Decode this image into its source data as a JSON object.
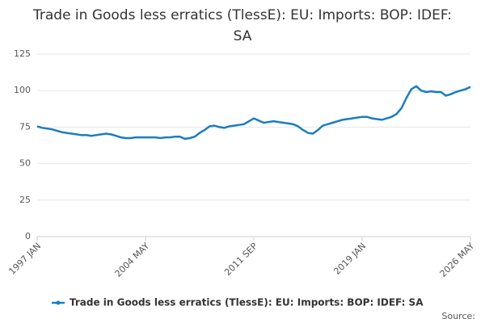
{
  "chart_data": {
    "type": "line",
    "title": "Trade in Goods less erratics (TlessE): EU: Imports: BOP: IDEF: SA",
    "source": "Source:",
    "categories": [
      "1997 JAN",
      null,
      null,
      null,
      null,
      null,
      null,
      null,
      null,
      null,
      null,
      null,
      null,
      null,
      null,
      null,
      null,
      null,
      null,
      null,
      null,
      null,
      "2004 MAY",
      null,
      null,
      null,
      null,
      null,
      null,
      null,
      null,
      null,
      null,
      null,
      null,
      null,
      null,
      null,
      null,
      null,
      null,
      null,
      null,
      null,
      "2011 SEP",
      null,
      null,
      null,
      null,
      null,
      null,
      null,
      null,
      null,
      null,
      null,
      null,
      null,
      null,
      null,
      null,
      null,
      null,
      null,
      null,
      null,
      "2019 JAN",
      null,
      null,
      null,
      null,
      null,
      null,
      null,
      null,
      null,
      null,
      null,
      null,
      null,
      null,
      null,
      null,
      null,
      null,
      null,
      null,
      null,
      "2026 MAY"
    ],
    "series": [
      {
        "name": "Trade in Goods less erratics (TlessE): EU: Imports: BOP: IDEF: SA",
        "color": "#1a7dbf",
        "values": [
          75.5,
          74.5,
          74,
          73.5,
          72.5,
          71.5,
          71,
          70.5,
          70,
          69.5,
          69.5,
          69,
          69.5,
          70,
          70.5,
          70,
          69,
          68,
          67.5,
          67.5,
          68,
          68,
          68,
          68,
          68,
          67.5,
          68,
          68,
          68.5,
          68.5,
          67,
          67.5,
          68.5,
          71,
          73,
          75.5,
          76,
          75,
          74.5,
          75.5,
          76,
          76.5,
          77,
          79,
          81,
          79.5,
          78,
          78.5,
          79,
          78.5,
          78,
          77.5,
          77,
          75.5,
          73,
          71,
          70.5,
          73,
          76,
          77,
          78,
          79,
          80,
          80.5,
          81,
          81.5,
          82,
          82,
          81,
          80.5,
          80,
          81,
          82,
          84,
          88,
          95,
          101,
          103,
          100,
          99,
          99.5,
          99,
          99,
          96.5,
          97.5,
          99,
          100,
          101,
          102.5
        ]
      }
    ],
    "ylim": [
      0,
      125
    ],
    "yticks": [
      0,
      25,
      50,
      75,
      100,
      125
    ],
    "grid": true
  }
}
